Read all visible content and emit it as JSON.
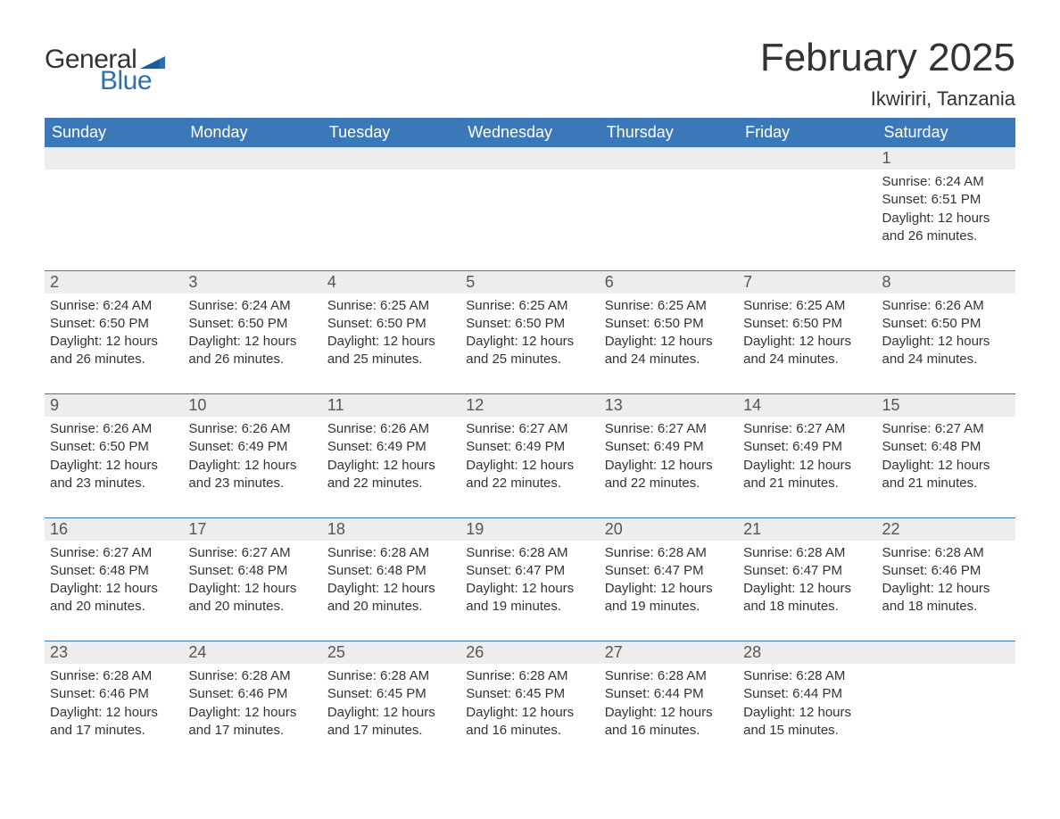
{
  "logo": {
    "text_general": "General",
    "text_blue": "Blue",
    "flag_color": "#2f6fb0"
  },
  "title": "February 2025",
  "location": "Ikwiriri, Tanzania",
  "colors": {
    "header_bg": "#3b78b8",
    "header_text": "#ffffff",
    "daynum_bg": "#ededed",
    "text": "#333333",
    "rule": "#3b78b8",
    "page_bg": "#ffffff"
  },
  "day_headers": [
    "Sunday",
    "Monday",
    "Tuesday",
    "Wednesday",
    "Thursday",
    "Friday",
    "Saturday"
  ],
  "weeks": [
    [
      {
        "n": "",
        "sunrise": "",
        "sunset": "",
        "daylight": ""
      },
      {
        "n": "",
        "sunrise": "",
        "sunset": "",
        "daylight": ""
      },
      {
        "n": "",
        "sunrise": "",
        "sunset": "",
        "daylight": ""
      },
      {
        "n": "",
        "sunrise": "",
        "sunset": "",
        "daylight": ""
      },
      {
        "n": "",
        "sunrise": "",
        "sunset": "",
        "daylight": ""
      },
      {
        "n": "",
        "sunrise": "",
        "sunset": "",
        "daylight": ""
      },
      {
        "n": "1",
        "sunrise": "Sunrise: 6:24 AM",
        "sunset": "Sunset: 6:51 PM",
        "daylight": "Daylight: 12 hours and 26 minutes."
      }
    ],
    [
      {
        "n": "2",
        "sunrise": "Sunrise: 6:24 AM",
        "sunset": "Sunset: 6:50 PM",
        "daylight": "Daylight: 12 hours and 26 minutes."
      },
      {
        "n": "3",
        "sunrise": "Sunrise: 6:24 AM",
        "sunset": "Sunset: 6:50 PM",
        "daylight": "Daylight: 12 hours and 26 minutes."
      },
      {
        "n": "4",
        "sunrise": "Sunrise: 6:25 AM",
        "sunset": "Sunset: 6:50 PM",
        "daylight": "Daylight: 12 hours and 25 minutes."
      },
      {
        "n": "5",
        "sunrise": "Sunrise: 6:25 AM",
        "sunset": "Sunset: 6:50 PM",
        "daylight": "Daylight: 12 hours and 25 minutes."
      },
      {
        "n": "6",
        "sunrise": "Sunrise: 6:25 AM",
        "sunset": "Sunset: 6:50 PM",
        "daylight": "Daylight: 12 hours and 24 minutes."
      },
      {
        "n": "7",
        "sunrise": "Sunrise: 6:25 AM",
        "sunset": "Sunset: 6:50 PM",
        "daylight": "Daylight: 12 hours and 24 minutes."
      },
      {
        "n": "8",
        "sunrise": "Sunrise: 6:26 AM",
        "sunset": "Sunset: 6:50 PM",
        "daylight": "Daylight: 12 hours and 24 minutes."
      }
    ],
    [
      {
        "n": "9",
        "sunrise": "Sunrise: 6:26 AM",
        "sunset": "Sunset: 6:50 PM",
        "daylight": "Daylight: 12 hours and 23 minutes."
      },
      {
        "n": "10",
        "sunrise": "Sunrise: 6:26 AM",
        "sunset": "Sunset: 6:49 PM",
        "daylight": "Daylight: 12 hours and 23 minutes."
      },
      {
        "n": "11",
        "sunrise": "Sunrise: 6:26 AM",
        "sunset": "Sunset: 6:49 PM",
        "daylight": "Daylight: 12 hours and 22 minutes."
      },
      {
        "n": "12",
        "sunrise": "Sunrise: 6:27 AM",
        "sunset": "Sunset: 6:49 PM",
        "daylight": "Daylight: 12 hours and 22 minutes."
      },
      {
        "n": "13",
        "sunrise": "Sunrise: 6:27 AM",
        "sunset": "Sunset: 6:49 PM",
        "daylight": "Daylight: 12 hours and 22 minutes."
      },
      {
        "n": "14",
        "sunrise": "Sunrise: 6:27 AM",
        "sunset": "Sunset: 6:49 PM",
        "daylight": "Daylight: 12 hours and 21 minutes."
      },
      {
        "n": "15",
        "sunrise": "Sunrise: 6:27 AM",
        "sunset": "Sunset: 6:48 PM",
        "daylight": "Daylight: 12 hours and 21 minutes."
      }
    ],
    [
      {
        "n": "16",
        "sunrise": "Sunrise: 6:27 AM",
        "sunset": "Sunset: 6:48 PM",
        "daylight": "Daylight: 12 hours and 20 minutes."
      },
      {
        "n": "17",
        "sunrise": "Sunrise: 6:27 AM",
        "sunset": "Sunset: 6:48 PM",
        "daylight": "Daylight: 12 hours and 20 minutes."
      },
      {
        "n": "18",
        "sunrise": "Sunrise: 6:28 AM",
        "sunset": "Sunset: 6:48 PM",
        "daylight": "Daylight: 12 hours and 20 minutes."
      },
      {
        "n": "19",
        "sunrise": "Sunrise: 6:28 AM",
        "sunset": "Sunset: 6:47 PM",
        "daylight": "Daylight: 12 hours and 19 minutes."
      },
      {
        "n": "20",
        "sunrise": "Sunrise: 6:28 AM",
        "sunset": "Sunset: 6:47 PM",
        "daylight": "Daylight: 12 hours and 19 minutes."
      },
      {
        "n": "21",
        "sunrise": "Sunrise: 6:28 AM",
        "sunset": "Sunset: 6:47 PM",
        "daylight": "Daylight: 12 hours and 18 minutes."
      },
      {
        "n": "22",
        "sunrise": "Sunrise: 6:28 AM",
        "sunset": "Sunset: 6:46 PM",
        "daylight": "Daylight: 12 hours and 18 minutes."
      }
    ],
    [
      {
        "n": "23",
        "sunrise": "Sunrise: 6:28 AM",
        "sunset": "Sunset: 6:46 PM",
        "daylight": "Daylight: 12 hours and 17 minutes."
      },
      {
        "n": "24",
        "sunrise": "Sunrise: 6:28 AM",
        "sunset": "Sunset: 6:46 PM",
        "daylight": "Daylight: 12 hours and 17 minutes."
      },
      {
        "n": "25",
        "sunrise": "Sunrise: 6:28 AM",
        "sunset": "Sunset: 6:45 PM",
        "daylight": "Daylight: 12 hours and 17 minutes."
      },
      {
        "n": "26",
        "sunrise": "Sunrise: 6:28 AM",
        "sunset": "Sunset: 6:45 PM",
        "daylight": "Daylight: 12 hours and 16 minutes."
      },
      {
        "n": "27",
        "sunrise": "Sunrise: 6:28 AM",
        "sunset": "Sunset: 6:44 PM",
        "daylight": "Daylight: 12 hours and 16 minutes."
      },
      {
        "n": "28",
        "sunrise": "Sunrise: 6:28 AM",
        "sunset": "Sunset: 6:44 PM",
        "daylight": "Daylight: 12 hours and 15 minutes."
      },
      {
        "n": "",
        "sunrise": "",
        "sunset": "",
        "daylight": ""
      }
    ]
  ]
}
